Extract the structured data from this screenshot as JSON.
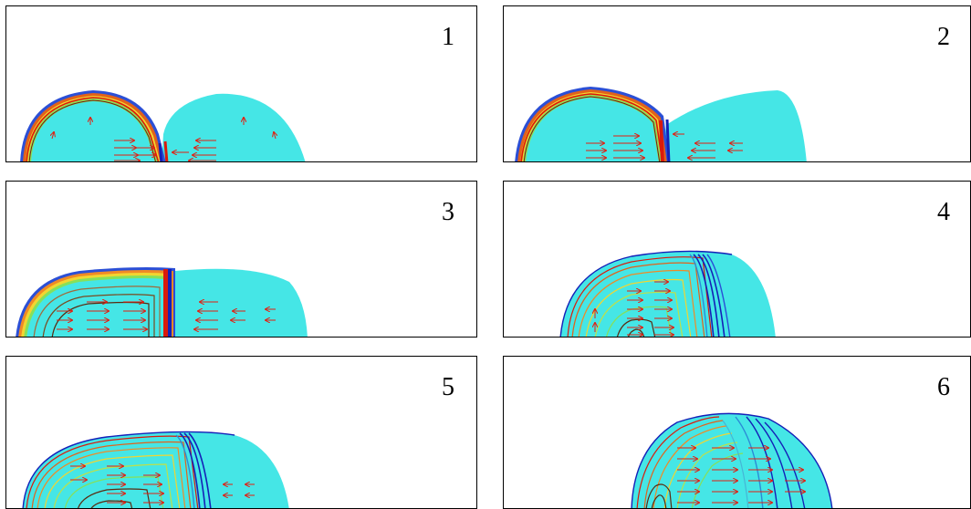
{
  "panels": [
    {
      "label": "1"
    },
    {
      "label": "2"
    },
    {
      "label": "3"
    },
    {
      "label": "4"
    },
    {
      "label": "5"
    },
    {
      "label": "6"
    }
  ],
  "colors": {
    "fluid": "#45e6e6",
    "arrow": "#e21d10",
    "cold": "#1420b8",
    "hot": "#d91a0b",
    "mid_green": "#86e05a",
    "mid_yellow": "#f2d531",
    "mid_orange": "#f08a25"
  }
}
